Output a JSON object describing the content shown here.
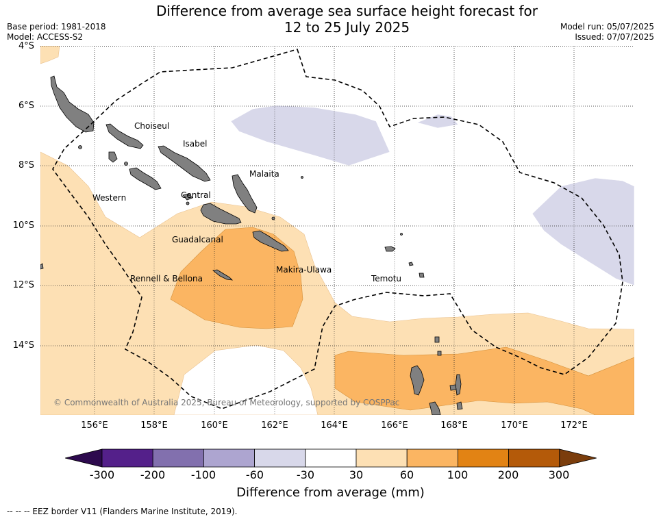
{
  "title_lines": [
    "Difference from average sea surface height forecast for",
    "12 to 25 July 2025"
  ],
  "meta": {
    "base_period": "Base period: 1981-2018",
    "model": "Model: ACCESS-S2",
    "model_run": "Model run: 05/07/2025",
    "issued": "Issued: 07/07/2025"
  },
  "axes": {
    "lat_labels": [
      "4°S",
      "6°S",
      "8°S",
      "10°S",
      "12°S",
      "14°S"
    ],
    "lon_labels": [
      "156°E",
      "158°E",
      "160°E",
      "162°E",
      "164°E",
      "166°E",
      "168°E",
      "170°E",
      "172°E"
    ]
  },
  "places": [
    "Choiseul",
    "Isabel",
    "Malaita",
    "Western",
    "Central",
    "Guadalcanal",
    "Makira-Ulawa",
    "Rennell & Bellona",
    "Temotu"
  ],
  "copyright": "© Commonwealth of Australia 2025, Bureau of Meteorology, supported by COSPPac",
  "colorbar": {
    "ticks": [
      "-300",
      "-200",
      "-100",
      "-60",
      "-30",
      "30",
      "60",
      "100",
      "200",
      "300"
    ],
    "colors": [
      "#2d0a4e",
      "#54208a",
      "#8270ae",
      "#ada5d0",
      "#d8d8ea",
      "#ffffff",
      "#fde0b4",
      "#fbb562",
      "#e28314",
      "#b45a09",
      "#7b3d0c"
    ],
    "label": "Difference from average (mm)"
  },
  "legend_note": "--  --  -- EEZ border V11 (Flanders Marine Institute, 2019).",
  "colors": {
    "land": "#808080",
    "band_60_100": "#fbb562",
    "band_30_60": "#fde0b4",
    "band_m60_m30": "#d8d8ea"
  }
}
